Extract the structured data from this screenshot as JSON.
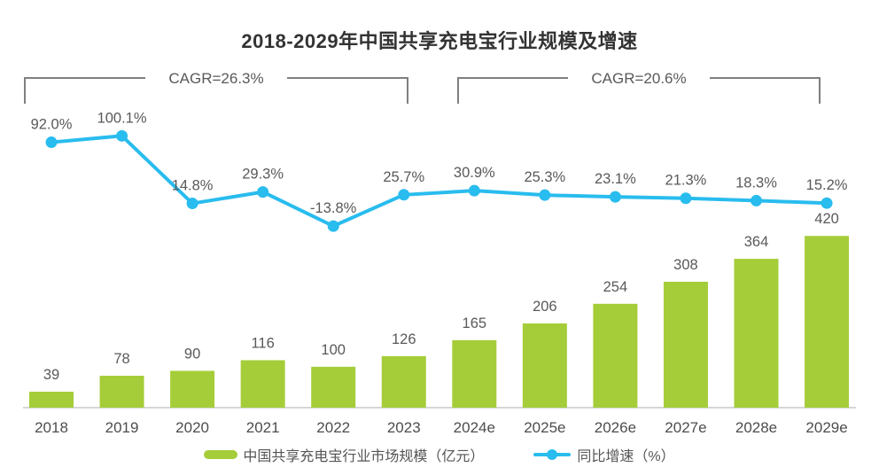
{
  "chart_data": {
    "type": "bar+line",
    "title": "2018-2029年中国共享充电宝行业规模及增速",
    "categories": [
      "2018",
      "2019",
      "2020",
      "2021",
      "2022",
      "2023",
      "2024e",
      "2025e",
      "2026e",
      "2027e",
      "2028e",
      "2029e"
    ],
    "series": [
      {
        "name": "中国共享充电宝行业市场规模（亿元）",
        "type": "bar",
        "values": [
          39,
          78,
          90,
          116,
          100,
          126,
          165,
          206,
          254,
          308,
          364,
          420
        ],
        "labels": [
          "39",
          "78",
          "90",
          "116",
          "100",
          "126",
          "165",
          "206",
          "254",
          "308",
          "364",
          "420"
        ]
      },
      {
        "name": "同比增速（%）",
        "type": "line",
        "values": [
          92.0,
          100.1,
          14.8,
          29.3,
          -13.8,
          25.7,
          30.9,
          25.3,
          23.1,
          21.3,
          18.3,
          15.2
        ],
        "labels": [
          "92.0%",
          "100.1%",
          "14.8%",
          "29.3%",
          "-13.8%",
          "25.7%",
          "30.9%",
          "25.3%",
          "23.1%",
          "21.3%",
          "18.3%",
          "15.2%"
        ]
      }
    ],
    "annotations": {
      "brackets": [
        {
          "label": "CAGR=26.3%",
          "from": "2018",
          "to": "2023"
        },
        {
          "label": "CAGR=20.6%",
          "from": "2024e",
          "to": "2029e"
        }
      ]
    },
    "legend": [
      "中国共享充电宝行业市场规模（亿元）",
      "同比增速（%）"
    ],
    "legend_position": "bottom",
    "grid": false,
    "ylim_left": [
      0,
      440
    ],
    "ylim_right": [
      -45,
      115
    ],
    "colors": {
      "bar": "#A5CD39",
      "line": "#29BCEE",
      "title": "#333333",
      "value_label": "#595959",
      "tick_label": "#4D4D4D",
      "axis": "#D6D6D6",
      "bracket": "#7F7F7F"
    }
  }
}
